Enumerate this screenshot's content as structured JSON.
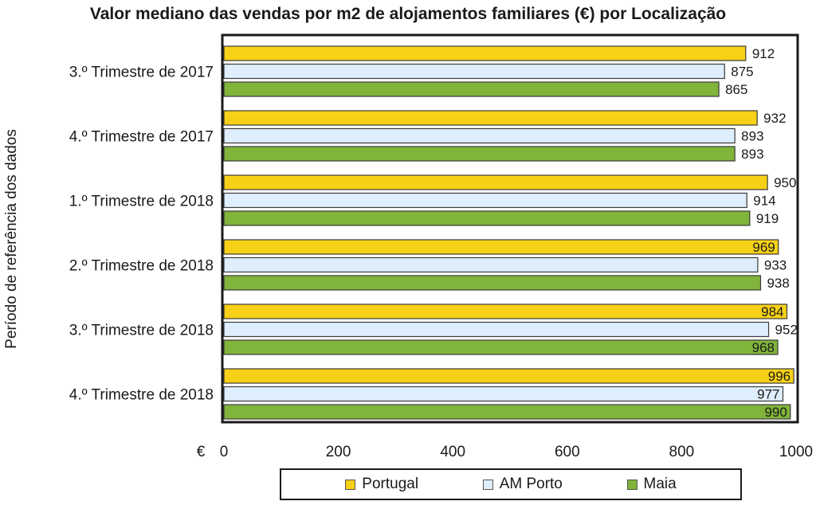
{
  "chart_data": {
    "type": "bar",
    "orientation": "horizontal",
    "title": "Valor mediano das vendas por m2 de alojamentos familiares (€) por Localização",
    "ylabel": "Período de referência dos dados",
    "x_unit_label": "€",
    "categories": [
      "3.º Trimestre de 2017",
      "4.º Trimestre de 2017",
      "1.º Trimestre de 2018",
      "2.º Trimestre de 2018",
      "3.º Trimestre de 2018",
      "4.º Trimestre de 2018"
    ],
    "series": [
      {
        "name": "Portugal",
        "color": "#f7d117",
        "values": [
          912,
          932,
          950,
          969,
          984,
          996
        ]
      },
      {
        "name": "AM Porto",
        "color": "#deeefc",
        "values": [
          875,
          893,
          914,
          933,
          952,
          977
        ]
      },
      {
        "name": "Maia",
        "color": "#80b43a",
        "values": [
          865,
          893,
          919,
          938,
          968,
          990
        ]
      }
    ],
    "xlim": [
      0,
      1000
    ],
    "xticks": [
      "0",
      "200",
      "400",
      "600",
      "800",
      "1000"
    ],
    "grid": false,
    "legend_position": "bottom"
  }
}
